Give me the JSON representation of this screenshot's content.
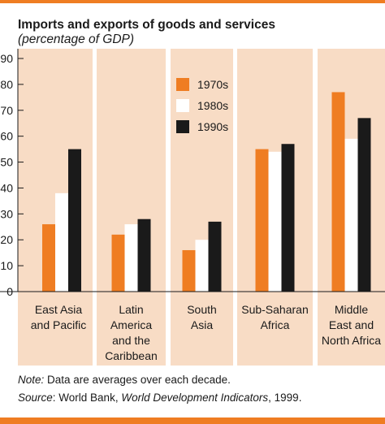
{
  "colors": {
    "accent": "#ef7d22",
    "panel": "#f8dcc5",
    "series": [
      "#ef7d22",
      "#ffffff",
      "#1a1a1a"
    ]
  },
  "header": {
    "title": "Imports and exports of goods and services",
    "subtitle": "(percentage of GDP)"
  },
  "footer": {
    "note_label": "Note:",
    "note_text": " Data are averages over each decade.",
    "source_label": "Source",
    "source_text": ": World Bank, ",
    "source_title": "World Development Indicators",
    "source_year": ", 1999."
  },
  "chart_data": {
    "type": "bar",
    "title": "Imports and exports of goods and services",
    "subtitle": "(percentage of GDP)",
    "xlabel": "",
    "ylabel": "",
    "ylim": [
      0,
      90
    ],
    "yticks": [
      0,
      10,
      20,
      30,
      40,
      50,
      60,
      70,
      80,
      90
    ],
    "grid": false,
    "legend_position": "top-center",
    "categories": [
      [
        "East Asia",
        "and Pacific"
      ],
      [
        "Latin",
        "America",
        "and the",
        "Caribbean"
      ],
      [
        "South",
        "Asia"
      ],
      [
        "Sub-Saharan",
        "Africa"
      ],
      [
        "Middle",
        "East and",
        "North Africa"
      ]
    ],
    "series": [
      {
        "name": "1970s",
        "color": "#ef7d22",
        "values": [
          26,
          22,
          16,
          55,
          77
        ]
      },
      {
        "name": "1980s",
        "color": "#ffffff",
        "values": [
          38,
          26,
          20,
          54,
          59
        ]
      },
      {
        "name": "1990s",
        "color": "#1a1a1a",
        "values": [
          55,
          28,
          27,
          57,
          67
        ]
      }
    ]
  }
}
